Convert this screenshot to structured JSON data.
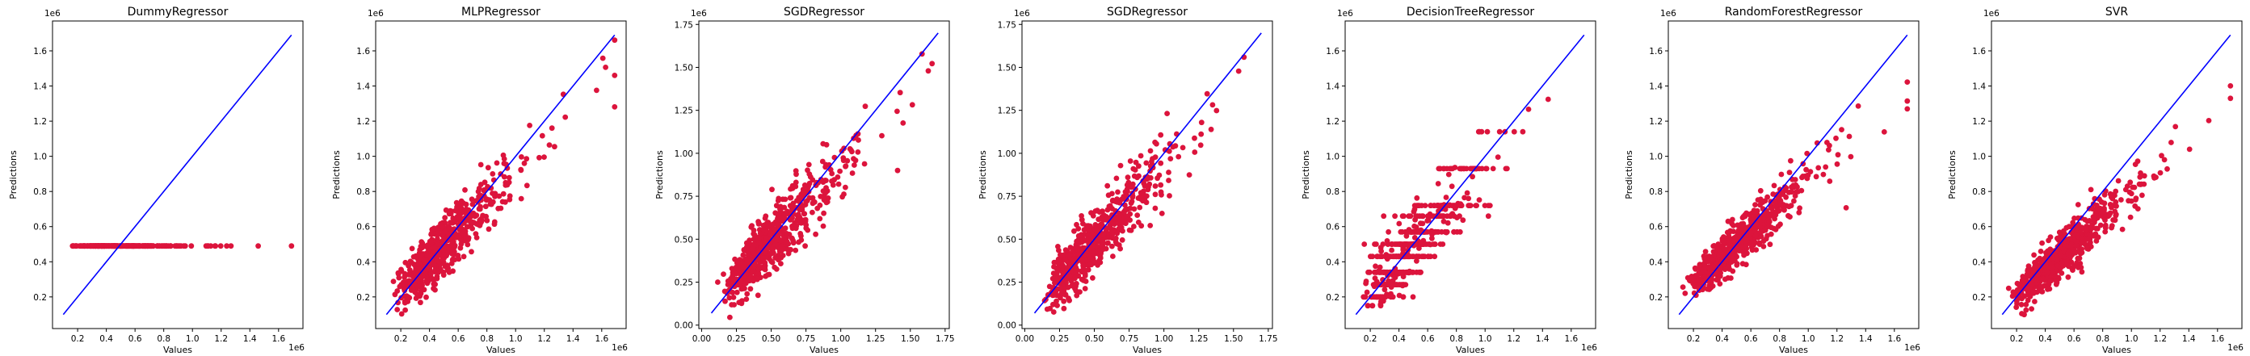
{
  "colors": {
    "points": "#dc143c",
    "line": "#0000ff",
    "axes": "#000000"
  },
  "chart_data": [
    {
      "type": "scatter",
      "title": "DummyRegressor",
      "xlabel": "Values",
      "ylabel": "Predictions",
      "xlim": [
        0.025,
        1.77
      ],
      "ylim": [
        0.02,
        1.77
      ],
      "xticks": [
        0.2,
        0.4,
        0.6,
        0.8,
        1.0,
        1.2,
        1.4,
        1.6
      ],
      "yticks": [
        0.2,
        0.4,
        0.6,
        0.8,
        1.0,
        1.2,
        1.4,
        1.6
      ],
      "xoffset": "1e6",
      "yoffset": "1e6",
      "reference_line": [
        [
          0.1,
          0.1
        ],
        [
          1.69,
          1.69
        ]
      ],
      "grid": false,
      "point_model": "constant",
      "constant_prediction": 0.49,
      "n_points": 300
    },
    {
      "type": "scatter",
      "title": "MLPRegressor",
      "xlabel": "Values",
      "ylabel": "Predictions",
      "xlim": [
        0.025,
        1.77
      ],
      "ylim": [
        0.02,
        1.77
      ],
      "xticks": [
        0.2,
        0.4,
        0.6,
        0.8,
        1.0,
        1.2,
        1.4,
        1.6
      ],
      "yticks": [
        0.2,
        0.4,
        0.6,
        0.8,
        1.0,
        1.2,
        1.4,
        1.6
      ],
      "xoffset": "1e6",
      "yoffset": "1e6",
      "reference_line": [
        [
          0.1,
          0.1
        ],
        [
          1.69,
          1.69
        ]
      ],
      "grid": false,
      "point_model": "linear",
      "slope": 0.82,
      "intercept": 0.08,
      "noise": 0.09,
      "n_points": 600
    },
    {
      "type": "scatter",
      "title": "SGDRegressor",
      "xlabel": "Values",
      "ylabel": "Predictions",
      "xlim": [
        -0.02,
        1.78
      ],
      "ylim": [
        -0.02,
        1.77
      ],
      "xticks": [
        0.0,
        0.25,
        0.5,
        0.75,
        1.0,
        1.25,
        1.5,
        1.75
      ],
      "yticks": [
        0.0,
        0.25,
        0.5,
        0.75,
        1.0,
        1.25,
        1.5,
        1.75
      ],
      "xtick_labels": [
        "0.00",
        "0.25",
        "0.50",
        "0.75",
        "1.00",
        "1.25",
        "1.50",
        "1.75"
      ],
      "ytick_labels": [
        "0.00",
        "0.25",
        "0.50",
        "0.75",
        "1.00",
        "1.25",
        "1.50",
        "1.75"
      ],
      "xoffset": "",
      "yoffset": "1e6",
      "reference_line": [
        [
          0.07,
          0.07
        ],
        [
          1.7,
          1.7
        ]
      ],
      "grid": false,
      "point_model": "linear",
      "slope": 0.86,
      "intercept": 0.06,
      "noise": 0.1,
      "n_points": 600
    },
    {
      "type": "scatter",
      "title": "SGDRegressor",
      "xlabel": "Values",
      "ylabel": "Predictions",
      "xlim": [
        -0.02,
        1.78
      ],
      "ylim": [
        -0.02,
        1.77
      ],
      "xticks": [
        0.0,
        0.25,
        0.5,
        0.75,
        1.0,
        1.25,
        1.5,
        1.75
      ],
      "yticks": [
        0.0,
        0.25,
        0.5,
        0.75,
        1.0,
        1.25,
        1.5,
        1.75
      ],
      "xtick_labels": [
        "0.00",
        "0.25",
        "0.50",
        "0.75",
        "1.00",
        "1.25",
        "1.50",
        "1.75"
      ],
      "ytick_labels": [
        "0.00",
        "0.25",
        "0.50",
        "0.75",
        "1.00",
        "1.25",
        "1.50",
        "1.75"
      ],
      "xoffset": "",
      "yoffset": "1e6",
      "reference_line": [
        [
          0.07,
          0.07
        ],
        [
          1.7,
          1.7
        ]
      ],
      "grid": false,
      "point_model": "linear",
      "slope": 0.86,
      "intercept": 0.06,
      "noise": 0.1,
      "n_points": 600
    },
    {
      "type": "scatter",
      "title": "DecisionTreeRegressor",
      "xlabel": "Values",
      "ylabel": "Predictions",
      "xlim": [
        0.025,
        1.77
      ],
      "ylim": [
        0.02,
        1.77
      ],
      "xticks": [
        0.2,
        0.4,
        0.6,
        0.8,
        1.0,
        1.2,
        1.4,
        1.6
      ],
      "yticks": [
        0.2,
        0.4,
        0.6,
        0.8,
        1.0,
        1.2,
        1.4,
        1.6
      ],
      "xoffset": "1e6",
      "yoffset": "1e6",
      "reference_line": [
        [
          0.1,
          0.1
        ],
        [
          1.69,
          1.69
        ]
      ],
      "grid": false,
      "point_model": "banded",
      "bands": [
        0.2,
        0.27,
        0.34,
        0.43,
        0.5,
        0.57,
        0.66,
        0.72,
        0.93,
        1.14
      ],
      "noise": 0.1,
      "n_points": 600
    },
    {
      "type": "scatter",
      "title": "RandomForestRegressor",
      "xlabel": "Values",
      "ylabel": "Predictions",
      "xlim": [
        0.025,
        1.77
      ],
      "ylim": [
        0.02,
        1.77
      ],
      "xticks": [
        0.2,
        0.4,
        0.6,
        0.8,
        1.0,
        1.2,
        1.4,
        1.6
      ],
      "yticks": [
        0.2,
        0.4,
        0.6,
        0.8,
        1.0,
        1.2,
        1.4,
        1.6
      ],
      "xoffset": "1e6",
      "yoffset": "1e6",
      "reference_line": [
        [
          0.1,
          0.1
        ],
        [
          1.69,
          1.69
        ]
      ],
      "grid": false,
      "point_model": "linear",
      "slope": 0.72,
      "intercept": 0.14,
      "noise": 0.07,
      "n_points": 600
    },
    {
      "type": "scatter",
      "title": "SVR",
      "xlabel": "Values",
      "ylabel": "Predictions",
      "xlim": [
        0.025,
        1.77
      ],
      "ylim": [
        0.02,
        1.77
      ],
      "xticks": [
        0.2,
        0.4,
        0.6,
        0.8,
        1.0,
        1.2,
        1.4,
        1.6
      ],
      "yticks": [
        0.2,
        0.4,
        0.6,
        0.8,
        1.0,
        1.2,
        1.4,
        1.6
      ],
      "xoffset": "1e6",
      "yoffset": "1e6",
      "reference_line": [
        [
          0.1,
          0.1
        ],
        [
          1.69,
          1.69
        ]
      ],
      "grid": false,
      "point_model": "linear",
      "slope": 0.72,
      "intercept": 0.07,
      "noise": 0.07,
      "n_points": 600
    }
  ]
}
